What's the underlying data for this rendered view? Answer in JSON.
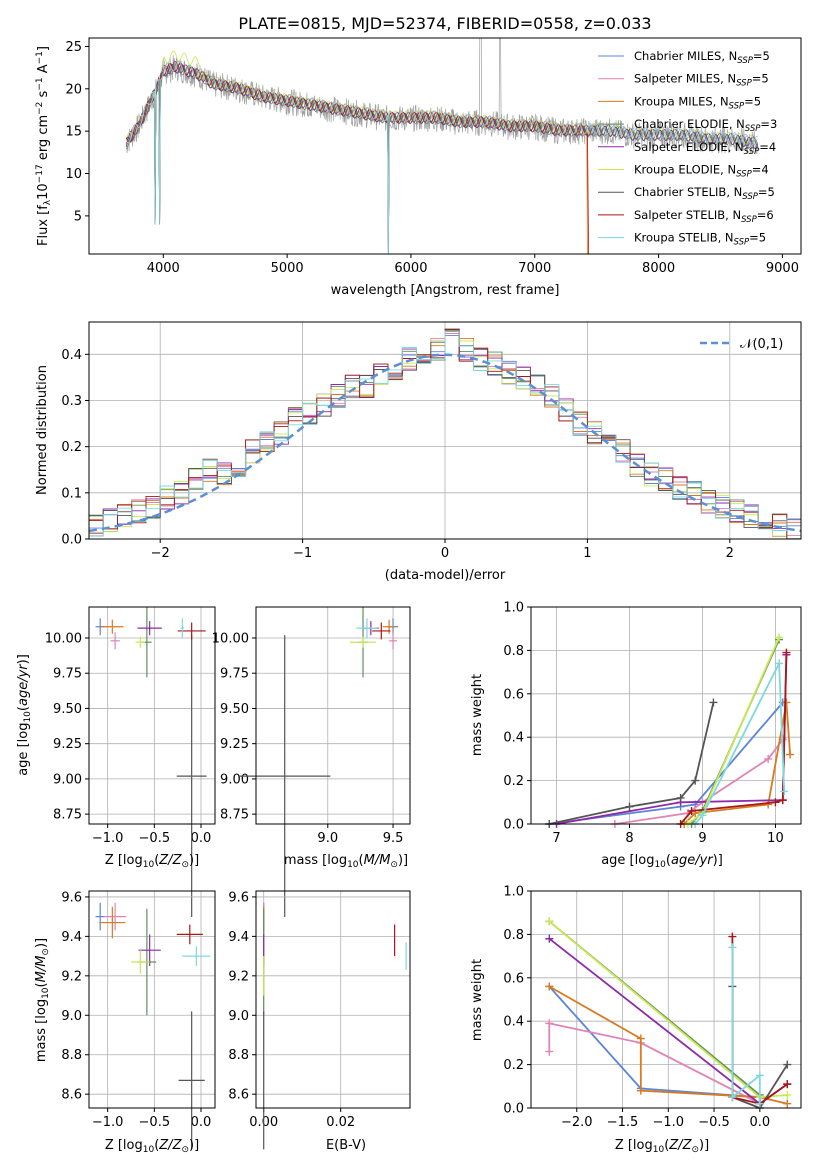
{
  "colors": {
    "cmiles": "#5b84d8",
    "smiles": "#e183b4",
    "kmiles": "#d97a1e",
    "celodie": "#5f8f5f",
    "selodie": "#8e2aa8",
    "kelodie": "#c8e854",
    "cstelib": "#555555",
    "sstelib": "#a81818",
    "kstelib": "#7dd8e0",
    "normal": "#5b8fd6"
  },
  "chart_data": [
    {
      "type": "line",
      "title": "PLATE=0815, MJD=52374, FIBERID=0558, z=0.033",
      "xlabel": "wavelength [Angstrom, rest frame]",
      "ylabel": "Flux [f_λ 10^-17 erg cm^-2 s^-1 A^-1]",
      "xlim": [
        3400,
        9150
      ],
      "ylim": [
        0.5,
        26
      ],
      "xticks": [
        4000,
        5000,
        6000,
        7000,
        8000,
        9000
      ],
      "yticks": [
        5,
        10,
        15,
        20,
        25
      ],
      "grid": false,
      "legend_position": "top-right",
      "series": [
        {
          "name": "Chabrier MILES, N_SSP=5",
          "color_key": "cmiles"
        },
        {
          "name": "Salpeter MILES, N_SSP=5",
          "color_key": "smiles"
        },
        {
          "name": "Kroupa MILES, N_SSP=5",
          "color_key": "kmiles"
        },
        {
          "name": "Chabrier ELODIE, N_SSP=3",
          "color_key": "celodie"
        },
        {
          "name": "Salpeter ELODIE, N_SSP=4",
          "color_key": "selodie"
        },
        {
          "name": "Kroupa ELODIE, N_SSP=4",
          "color_key": "kelodie"
        },
        {
          "name": "Chabrier STELIB, N_SSP=5",
          "color_key": "cstelib"
        },
        {
          "name": "Salpeter STELIB, N_SSP=6",
          "color_key": "sstelib"
        },
        {
          "name": "Kroupa STELIB, N_SSP=5",
          "color_key": "kstelib"
        }
      ],
      "continuum": {
        "x": [
          3700,
          3750,
          3800,
          3850,
          3900,
          3950,
          4000,
          4100,
          4200,
          4300,
          4400,
          4600,
          4800,
          5000,
          5200,
          5400,
          5600,
          5800,
          6000,
          6200,
          6400,
          6600,
          6800,
          7000,
          7200,
          7400,
          7600,
          7800,
          8000,
          8200,
          8400,
          8600,
          8800
        ],
        "y": [
          13.5,
          14.5,
          15.5,
          17,
          18.5,
          20,
          22,
          22.5,
          22,
          21.5,
          20.5,
          20,
          19,
          18.5,
          18,
          17.5,
          17,
          16.5,
          16.5,
          16.5,
          16,
          16,
          15.5,
          15.5,
          15,
          15,
          15,
          14.5,
          14.5,
          14.5,
          14,
          14,
          13.5
        ]
      }
    },
    {
      "type": "histogram",
      "xlabel": "(data-model)/error",
      "ylabel": "Normed distribution",
      "xlim": [
        -2.5,
        2.5
      ],
      "ylim": [
        0,
        0.47
      ],
      "xticks": [
        -2,
        -1,
        0,
        1,
        2
      ],
      "yticks": [
        0.0,
        0.1,
        0.2,
        0.3,
        0.4
      ],
      "grid": true,
      "legend": [
        "𝒩(0,1)"
      ],
      "legend_position": "top-right",
      "bin_edges": [
        -2.5,
        -2.4,
        -2.3,
        -2.2,
        -2.1,
        -2.0,
        -1.9,
        -1.8,
        -1.7,
        -1.6,
        -1.5,
        -1.4,
        -1.3,
        -1.2,
        -1.1,
        -1.0,
        -0.9,
        -0.8,
        -0.7,
        -0.6,
        -0.5,
        -0.4,
        -0.3,
        -0.2,
        -0.1,
        0.0,
        0.1,
        0.2,
        0.3,
        0.4,
        0.5,
        0.6,
        0.7,
        0.8,
        0.9,
        1.0,
        1.1,
        1.2,
        1.3,
        1.4,
        1.5,
        1.6,
        1.7,
        1.8,
        1.9,
        2.0,
        2.1,
        2.2,
        2.3,
        2.4,
        2.5
      ],
      "counts": [
        0.03,
        0.04,
        0.05,
        0.06,
        0.07,
        0.09,
        0.1,
        0.13,
        0.15,
        0.14,
        0.16,
        0.19,
        0.21,
        0.23,
        0.26,
        0.27,
        0.29,
        0.31,
        0.33,
        0.33,
        0.36,
        0.37,
        0.39,
        0.39,
        0.41,
        0.43,
        0.41,
        0.39,
        0.38,
        0.36,
        0.35,
        0.33,
        0.31,
        0.28,
        0.25,
        0.23,
        0.21,
        0.19,
        0.16,
        0.14,
        0.13,
        0.11,
        0.1,
        0.08,
        0.07,
        0.06,
        0.05,
        0.04,
        0.03,
        0.02
      ],
      "normal_curve": {
        "mean": 0,
        "sigma": 1
      }
    },
    {
      "type": "scatter",
      "xlabel": "Z [log10(Z/Z⊙)]",
      "ylabel": "age  [log10(age/yr)]",
      "xlim": [
        -1.2,
        0.15
      ],
      "ylim": [
        8.68,
        10.22
      ],
      "xticks": [
        -1.0,
        -0.5,
        0.0
      ],
      "xticklabels": [
        "−1.0",
        "−0.5",
        "0.0"
      ],
      "yticks": [
        8.75,
        9.0,
        9.25,
        9.5,
        9.75,
        10.0
      ],
      "grid": true,
      "points": [
        {
          "key": "cmiles",
          "x": -1.08,
          "y": 10.08,
          "xe": 0.05,
          "ye": 0.06
        },
        {
          "key": "smiles",
          "x": -0.92,
          "y": 9.98,
          "xe": 0.05,
          "ye": 0.06
        },
        {
          "key": "kmiles",
          "x": -0.95,
          "y": 10.08,
          "xe": 0.12,
          "ye": 0.05
        },
        {
          "key": "celodie",
          "x": -0.58,
          "y": 9.97,
          "xe": 0.05,
          "ye": 0.25
        },
        {
          "key": "selodie",
          "x": -0.55,
          "y": 10.07,
          "xe": 0.13,
          "ye": 0.05
        },
        {
          "key": "kelodie",
          "x": -0.65,
          "y": 9.97,
          "xe": 0.05,
          "ye": 0.04
        },
        {
          "key": "cstelib",
          "x": -0.1,
          "y": 9.02,
          "xe": 0.16,
          "ye": 1.0
        },
        {
          "key": "sstelib",
          "x": -0.1,
          "y": 10.05,
          "xe": 0.15,
          "ye": 0.06
        },
        {
          "key": "kstelib",
          "x": -0.2,
          "y": 10.07,
          "xe": 0.02,
          "ye": 0.07
        }
      ]
    },
    {
      "type": "scatter",
      "xlabel": "mass [log10(M/M⊙)]",
      "ylabel": "",
      "xlim": [
        8.45,
        9.63
      ],
      "ylim": [
        8.68,
        10.22
      ],
      "xticks": [
        9.0,
        9.5
      ],
      "yticks": [
        8.75,
        9.0,
        9.25,
        9.5,
        9.75,
        10.0
      ],
      "grid": true,
      "points": [
        {
          "key": "cmiles",
          "x": 9.5,
          "y": 10.08,
          "xe": 0.04,
          "ye": 0.06
        },
        {
          "key": "smiles",
          "x": 9.5,
          "y": 9.98,
          "xe": 0.03,
          "ye": 0.06
        },
        {
          "key": "kmiles",
          "x": 9.47,
          "y": 10.08,
          "xe": 0.05,
          "ye": 0.05
        },
        {
          "key": "celodie",
          "x": 9.27,
          "y": 9.97,
          "xe": 0.04,
          "ye": 0.25
        },
        {
          "key": "selodie",
          "x": 9.33,
          "y": 10.07,
          "xe": 0.06,
          "ye": 0.05
        },
        {
          "key": "kelodie",
          "x": 9.27,
          "y": 9.97,
          "xe": 0.1,
          "ye": 0.04
        },
        {
          "key": "cstelib",
          "x": 8.67,
          "y": 9.02,
          "xe": 0.35,
          "ye": 1.0
        },
        {
          "key": "sstelib",
          "x": 9.41,
          "y": 10.05,
          "xe": 0.07,
          "ye": 0.06
        },
        {
          "key": "kstelib",
          "x": 9.3,
          "y": 10.07,
          "xe": 0.08,
          "ye": 0.07
        }
      ]
    },
    {
      "type": "line",
      "xlabel": "age  [log10(age/yr)]",
      "ylabel": "mass weight",
      "xlim": [
        6.65,
        10.35
      ],
      "ylim": [
        0,
        1.0
      ],
      "xticks": [
        7,
        8,
        9,
        10
      ],
      "yticks": [
        0.0,
        0.2,
        0.4,
        0.6,
        0.8,
        1.0
      ],
      "grid": true,
      "series": [
        {
          "key": "cmiles",
          "x": [
            6.9,
            8.7,
            8.9,
            10.1
          ],
          "y": [
            0.0,
            0.08,
            0.09,
            0.56
          ]
        },
        {
          "key": "smiles",
          "x": [
            7.8,
            8.8,
            9.0,
            9.9,
            10.1
          ],
          "y": [
            0.0,
            0.05,
            0.1,
            0.3,
            0.39
          ]
        },
        {
          "key": "kmiles",
          "x": [
            8.75,
            8.9,
            9.9,
            10.15,
            10.2
          ],
          "y": [
            0.0,
            0.05,
            0.09,
            0.56,
            0.32
          ]
        },
        {
          "key": "celodie",
          "x": [
            8.85,
            9.0,
            10.05
          ],
          "y": [
            0.0,
            0.06,
            0.85
          ]
        },
        {
          "key": "selodie",
          "x": [
            7.0,
            8.7,
            10.1,
            10.15
          ],
          "y": [
            0.0,
            0.1,
            0.11,
            0.78
          ]
        },
        {
          "key": "kelodie",
          "x": [
            8.8,
            9.0,
            10.05
          ],
          "y": [
            0.0,
            0.05,
            0.86
          ]
        },
        {
          "key": "cstelib",
          "x": [
            6.9,
            8.0,
            8.7,
            8.9,
            9.15
          ],
          "y": [
            0.0,
            0.08,
            0.12,
            0.2,
            0.56
          ]
        },
        {
          "key": "sstelib",
          "x": [
            8.7,
            8.85,
            10.0,
            10.1,
            10.15
          ],
          "y": [
            0.0,
            0.06,
            0.1,
            0.11,
            0.79
          ]
        },
        {
          "key": "kstelib",
          "x": [
            8.9,
            9.0,
            10.05,
            10.12
          ],
          "y": [
            0.0,
            0.04,
            0.74,
            0.15
          ]
        }
      ]
    },
    {
      "type": "scatter",
      "xlabel": "Z [log10(Z/Z⊙)]",
      "ylabel": "mass [log10(M/M⊙)]",
      "xlim": [
        -1.2,
        0.15
      ],
      "ylim": [
        8.53,
        9.63
      ],
      "xticks": [
        -1.0,
        -0.5,
        0.0
      ],
      "xticklabels": [
        "−1.0",
        "−0.5",
        "0.0"
      ],
      "yticks": [
        8.6,
        8.8,
        9.0,
        9.2,
        9.4,
        9.6
      ],
      "grid": true,
      "points": [
        {
          "key": "cmiles",
          "x": -1.08,
          "y": 9.5,
          "xe": 0.05,
          "ye": 0.07
        },
        {
          "key": "smiles",
          "x": -0.92,
          "y": 9.5,
          "xe": 0.12,
          "ye": 0.07
        },
        {
          "key": "kmiles",
          "x": -0.95,
          "y": 9.47,
          "xe": 0.14,
          "ye": 0.08
        },
        {
          "key": "celodie",
          "x": -0.58,
          "y": 9.27,
          "xe": 0.1,
          "ye": 0.27
        },
        {
          "key": "selodie",
          "x": -0.55,
          "y": 9.33,
          "xe": 0.12,
          "ye": 0.08
        },
        {
          "key": "kelodie",
          "x": -0.65,
          "y": 9.27,
          "xe": 0.1,
          "ye": 0.06
        },
        {
          "key": "cstelib",
          "x": -0.1,
          "y": 8.67,
          "xe": 0.14,
          "ye": 0.35
        },
        {
          "key": "sstelib",
          "x": -0.12,
          "y": 9.41,
          "xe": 0.14,
          "ye": 0.05
        },
        {
          "key": "kstelib",
          "x": -0.05,
          "y": 9.3,
          "xe": 0.15,
          "ye": 0.05
        }
      ]
    },
    {
      "type": "scatter",
      "xlabel": "E(B-V)",
      "ylabel": "",
      "xlim": [
        -0.002,
        0.038
      ],
      "ylim": [
        8.53,
        9.63
      ],
      "xticks": [
        0.0,
        0.02
      ],
      "xticklabels": [
        "0.00",
        "0.02"
      ],
      "yticks": [
        8.6,
        8.8,
        9.0,
        9.2,
        9.4,
        9.6
      ],
      "grid": true,
      "points": [
        {
          "key": "cmiles",
          "x": 0.0,
          "y": 9.5,
          "xe": 0,
          "ye": 0.07
        },
        {
          "key": "smiles",
          "x": 0.0,
          "y": 9.5,
          "xe": 0,
          "ye": 0.07
        },
        {
          "key": "kmiles",
          "x": 0.0,
          "y": 9.47,
          "xe": 0,
          "ye": 0.08
        },
        {
          "key": "celodie",
          "x": 0.0,
          "y": 9.27,
          "xe": 0,
          "ye": 0.27
        },
        {
          "key": "selodie",
          "x": 0.0,
          "y": 9.33,
          "xe": 0,
          "ye": 0.08
        },
        {
          "key": "kelodie",
          "x": 0.0,
          "y": 9.2,
          "xe": 0,
          "ye": 0.1
        },
        {
          "key": "cstelib",
          "x": 0.0,
          "y": 8.67,
          "xe": 0,
          "ye": 0.35
        },
        {
          "key": "sstelib",
          "x": 0.034,
          "y": 9.38,
          "xe": 0,
          "ye": 0.08
        },
        {
          "key": "kstelib",
          "x": 0.037,
          "y": 9.3,
          "xe": 0,
          "ye": 0.07
        }
      ]
    },
    {
      "type": "line",
      "xlabel": "Z [log10(Z/Z⊙)]",
      "ylabel": "mass weight",
      "xlim": [
        -2.5,
        0.45
      ],
      "ylim": [
        0,
        1.0
      ],
      "xticks": [
        -2.0,
        -1.5,
        -1.0,
        -0.5,
        0.0
      ],
      "xticklabels": [
        "−2.0",
        "−1.5",
        "−1.0",
        "−0.5",
        "0.0"
      ],
      "yticks": [
        0.0,
        0.2,
        0.4,
        0.6,
        0.8,
        1.0
      ],
      "grid": true,
      "series": [
        {
          "key": "cmiles",
          "x": [
            -2.3,
            -1.3,
            0.0,
            0.0
          ],
          "y": [
            0.56,
            0.09,
            0.05,
            0.02
          ]
        },
        {
          "key": "smiles",
          "x": [
            -2.3,
            -2.3,
            -1.3,
            0.0
          ],
          "y": [
            0.26,
            0.39,
            0.3,
            0.02
          ]
        },
        {
          "key": "kmiles",
          "x": [
            -2.3,
            -1.3,
            -1.3,
            0.0,
            0.3
          ],
          "y": [
            0.56,
            0.32,
            0.08,
            0.05,
            0.02
          ]
        },
        {
          "key": "celodie",
          "x": [
            -2.3,
            0.0,
            0.0
          ],
          "y": [
            0.86,
            0.06,
            0.02
          ]
        },
        {
          "key": "selodie",
          "x": [
            -2.3,
            0.0,
            0.3
          ],
          "y": [
            0.78,
            0.02,
            0.11
          ]
        },
        {
          "key": "kelodie",
          "x": [
            -2.3,
            0.0,
            0.3
          ],
          "y": [
            0.86,
            0.05,
            0.06
          ]
        },
        {
          "key": "cstelib",
          "x": [
            -0.3,
            -0.3,
            0.0,
            0.3
          ],
          "y": [
            0.56,
            0.05,
            0.0,
            0.2
          ]
        },
        {
          "key": "sstelib",
          "x": [
            -0.3,
            -0.3,
            0.0,
            0.3
          ],
          "y": [
            0.79,
            0.05,
            0.02,
            0.11
          ]
        },
        {
          "key": "kstelib",
          "x": [
            -0.3,
            -0.3,
            0.0,
            0.0
          ],
          "y": [
            0.74,
            0.05,
            0.15,
            0.02
          ]
        }
      ]
    }
  ]
}
